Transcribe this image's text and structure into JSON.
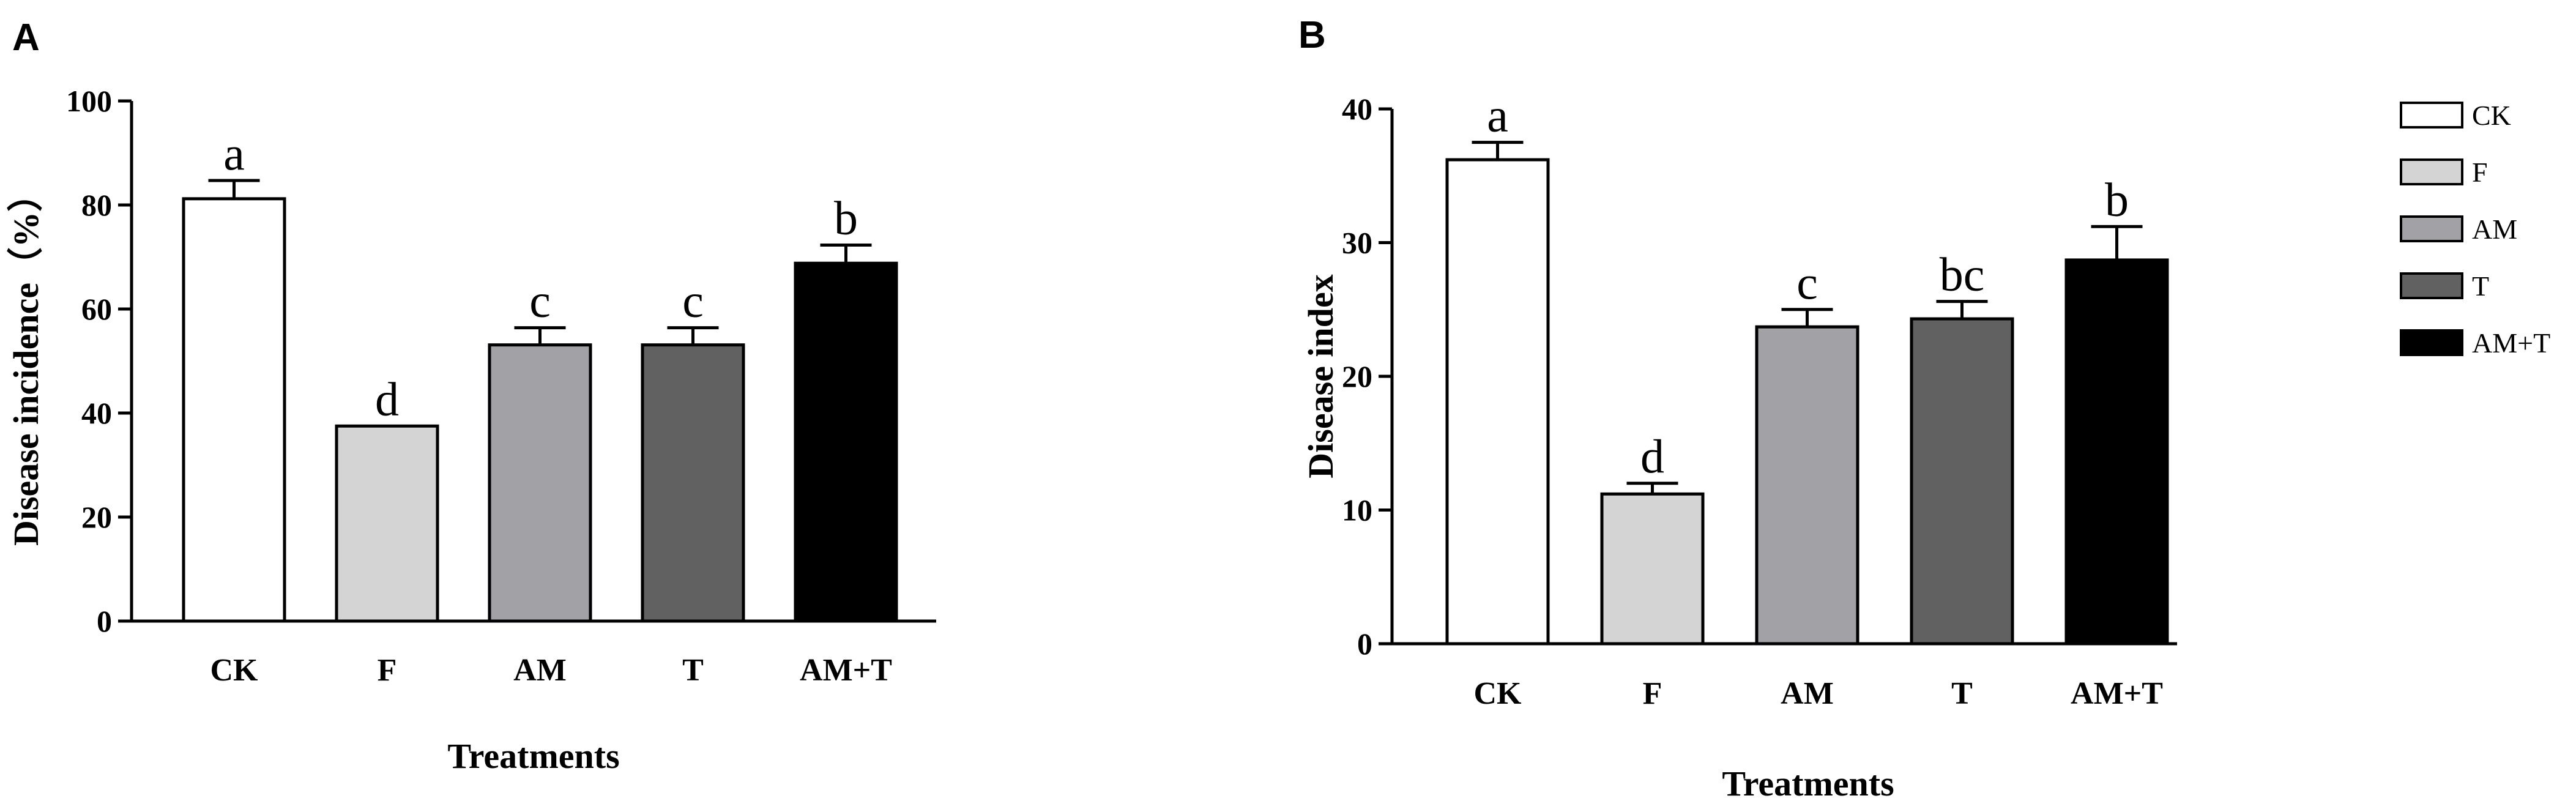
{
  "chart_data": [
    {
      "type": "bar",
      "panel": "A",
      "categories": [
        "CK",
        "F",
        "AM",
        "T",
        "AM+T"
      ],
      "values": [
        81.2,
        37.5,
        53.1,
        53.1,
        68.8
      ],
      "errors": [
        3.5,
        0,
        3.3,
        3.3,
        3.5
      ],
      "significance": [
        "a",
        "d",
        "c",
        "c",
        "b"
      ],
      "colors": [
        "#ffffff",
        "#d4d4d4",
        "#a2a2a6",
        "#616161",
        "#000000"
      ],
      "xlabel": "Treatments",
      "ylabel": "Disease incidence（%）",
      "ylim": [
        0,
        100
      ],
      "yticks": [
        0,
        20,
        40,
        60,
        80,
        100
      ]
    },
    {
      "type": "bar",
      "panel": "B",
      "categories": [
        "CK",
        "F",
        "AM",
        "T",
        "AM+T"
      ],
      "values": [
        36.2,
        11.2,
        23.7,
        24.3,
        28.7
      ],
      "errors": [
        1.3,
        0.8,
        1.3,
        1.3,
        2.5
      ],
      "significance": [
        "a",
        "d",
        "c",
        "bc",
        "b"
      ],
      "colors": [
        "#ffffff",
        "#d4d4d4",
        "#a2a2a6",
        "#616161",
        "#000000"
      ],
      "xlabel": "Treatments",
      "ylabel": "Disease index",
      "ylim": [
        0,
        40
      ],
      "yticks": [
        0,
        10,
        20,
        30,
        40
      ]
    }
  ],
  "legend": {
    "placement": "right",
    "items": [
      {
        "label": "CK",
        "color": "#ffffff"
      },
      {
        "label": "F",
        "color": "#d4d4d4"
      },
      {
        "label": "AM",
        "color": "#a2a2a6"
      },
      {
        "label": "T",
        "color": "#616161"
      },
      {
        "label": "AM+T",
        "color": "#000000"
      }
    ]
  }
}
